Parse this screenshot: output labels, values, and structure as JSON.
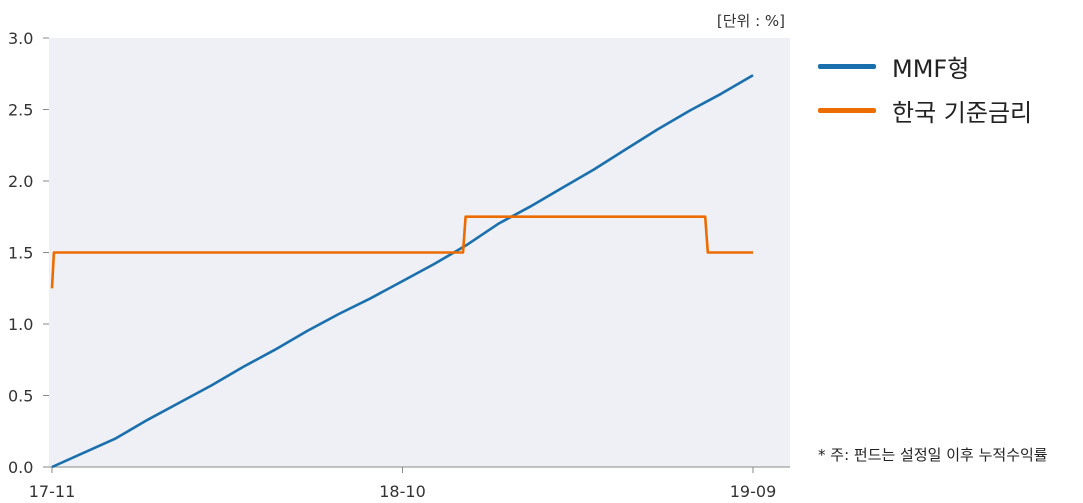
{
  "unit_label": "[단위 : %]",
  "footnote": "* 주: 펀드는 설정일 이후 누적수익률",
  "colors": {
    "mmf": "#1a6fad",
    "base_rate": "#ec6c00",
    "plot_bg": "#eef0f5",
    "axis": "#888888"
  },
  "chart_data": {
    "type": "line",
    "ylim": [
      0,
      3.0
    ],
    "y_ticks": [
      {
        "value": 0.0,
        "label": "0.0"
      },
      {
        "value": 0.5,
        "label": "0.5"
      },
      {
        "value": 1.0,
        "label": "1.0"
      },
      {
        "value": 1.5,
        "label": "1.5"
      },
      {
        "value": 2.0,
        "label": "2.0"
      },
      {
        "value": 2.5,
        "label": "2.5"
      },
      {
        "value": 3.0,
        "label": "3.0"
      }
    ],
    "x_ticks": [
      {
        "month": 0,
        "label": "17-11"
      },
      {
        "month": 11,
        "label": "18-10"
      },
      {
        "month": 22,
        "label": "19-09"
      }
    ],
    "legend_position": "right",
    "series": [
      {
        "name": "MMF형",
        "color": "#1a6fad",
        "points": [
          [
            0,
            0.0
          ],
          [
            1,
            0.1
          ],
          [
            2,
            0.2
          ],
          [
            3,
            0.33
          ],
          [
            4,
            0.45
          ],
          [
            5,
            0.57
          ],
          [
            6,
            0.7
          ],
          [
            7,
            0.82
          ],
          [
            8,
            0.95
          ],
          [
            9,
            1.07
          ],
          [
            10,
            1.18
          ],
          [
            11,
            1.3
          ],
          [
            12,
            1.42
          ],
          [
            13,
            1.55
          ],
          [
            14,
            1.7
          ],
          [
            15,
            1.82
          ],
          [
            16,
            1.95
          ],
          [
            17,
            2.08
          ],
          [
            18,
            2.22
          ],
          [
            19,
            2.36
          ],
          [
            20,
            2.49
          ],
          [
            21,
            2.61
          ],
          [
            22,
            2.74
          ]
        ]
      },
      {
        "name": "한국 기준금리",
        "color": "#ec6c00",
        "points": [
          [
            0,
            1.25
          ],
          [
            0.06,
            1.5
          ],
          [
            12.9,
            1.5
          ],
          [
            12.98,
            1.75
          ],
          [
            20.5,
            1.75
          ],
          [
            20.58,
            1.5
          ],
          [
            22,
            1.5
          ]
        ]
      }
    ]
  }
}
